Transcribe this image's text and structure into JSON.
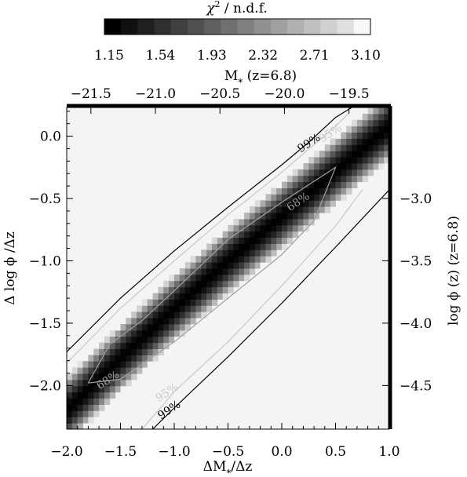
{
  "chart_data": {
    "type": "heatmap",
    "colorbar": {
      "label_symbol": "χ",
      "label_sup": "2",
      "label_rest": " / n.d.f.",
      "range": [
        1.15,
        3.1
      ],
      "ticks": [
        "1.15",
        "1.54",
        "1.93",
        "2.32",
        "2.71",
        "3.10"
      ],
      "colors": [
        "#000000",
        "#101010",
        "#202020",
        "#303030",
        "#404040",
        "#505050",
        "#606060",
        "#707070",
        "#808080",
        "#909090",
        "#a0a0a0",
        "#b0b0b0",
        "#c0c0c0",
        "#d0d0d0",
        "#e0e0e0",
        "#f8f8f8"
      ]
    },
    "x_axis": {
      "label_main": "ΔM",
      "label_sub": "*",
      "label_tail": "/Δz",
      "range": [
        -2.0,
        1.0
      ],
      "ticks": [
        -2.0,
        -1.5,
        -1.0,
        -0.5,
        0.0,
        0.5,
        1.0
      ],
      "tick_labels": [
        "−2.0",
        "−1.5",
        "−1.0",
        "−0.5",
        "0.0",
        "0.5",
        "1.0"
      ]
    },
    "y_axis": {
      "label": "Δ log ϕ /Δz",
      "range": [
        -2.35,
        0.23
      ],
      "ticks": [
        -2.0,
        -1.5,
        -1.0,
        -0.5,
        0.0
      ],
      "tick_labels": [
        "−2.0",
        "−1.5",
        "−1.0",
        "−0.5",
        "0.0"
      ]
    },
    "top_axis": {
      "label_main": "M",
      "label_sub": "*",
      "label_tail": " (z=6.8)",
      "ticks": [
        -21.5,
        -21.0,
        -20.5,
        -20.0,
        -19.5
      ],
      "tick_labels": [
        "−21.5",
        "−21.0",
        "−20.5",
        "−20.0",
        "−19.5"
      ],
      "positions_at_bottom": [
        -1.775,
        -1.175,
        -0.575,
        0.025,
        0.625
      ]
    },
    "right_axis": {
      "label": "log ϕ (z) (z=6.8)",
      "ticks": [
        -3.0,
        -3.5,
        -4.0,
        -4.5
      ],
      "tick_labels": [
        "−3.0",
        "−3.5",
        "−4.0",
        "−4.5"
      ],
      "positions_at_left": [
        -0.5,
        -1.0,
        -1.5,
        -2.0
      ]
    },
    "background_value": 3.1,
    "valley": {
      "center": [
        [
          -2.0,
          -2.2
        ],
        [
          -1.5,
          -1.78
        ],
        [
          -1.0,
          -1.38
        ],
        [
          -0.5,
          -1.0
        ],
        [
          0.0,
          -0.64
        ],
        [
          0.5,
          -0.28
        ],
        [
          1.0,
          0.08
        ]
      ],
      "min_value": 1.15,
      "half_width": 0.17
    },
    "contours": [
      {
        "label": "99%",
        "color": "#000000",
        "upper": [
          [
            -2.0,
            -1.73
          ],
          [
            -1.5,
            -1.3
          ],
          [
            -1.0,
            -0.92
          ],
          [
            -0.5,
            -0.57
          ],
          [
            0.0,
            -0.23
          ],
          [
            0.25,
            -0.05
          ],
          [
            0.5,
            0.15
          ],
          [
            0.65,
            0.23
          ]
        ],
        "lower": [
          [
            -1.2,
            -2.35
          ],
          [
            -1.0,
            -2.18
          ],
          [
            -0.5,
            -1.77
          ],
          [
            0.0,
            -1.34
          ],
          [
            0.5,
            -0.89
          ],
          [
            1.0,
            -0.43
          ]
        ],
        "labels": [
          {
            "text": "99%",
            "x": 0.27,
            "y": -0.08
          },
          {
            "text": "99%",
            "x": -1.03,
            "y": -2.22
          }
        ]
      },
      {
        "label": "95%",
        "color": "#c8c8c8",
        "upper": [
          [
            -2.0,
            -1.82
          ],
          [
            -1.5,
            -1.38
          ],
          [
            -1.0,
            -1.0
          ],
          [
            -0.5,
            -0.63
          ],
          [
            0.0,
            -0.29
          ],
          [
            0.5,
            0.08
          ],
          [
            0.62,
            0.18
          ]
        ],
        "lower": [
          [
            -1.3,
            -2.35
          ],
          [
            -1.0,
            -2.05
          ],
          [
            -0.5,
            -1.65
          ],
          [
            0.0,
            -1.2
          ],
          [
            0.5,
            -0.72
          ],
          [
            0.75,
            -0.43
          ]
        ],
        "labels": [
          {
            "text": "95%",
            "x": 0.47,
            "y": 0.0
          },
          {
            "text": "95%",
            "x": -1.05,
            "y": -2.08
          }
        ]
      },
      {
        "label": "68%",
        "color": "#a0a0a0",
        "polygon": [
          [
            -1.8,
            -1.98
          ],
          [
            -1.6,
            -1.67
          ],
          [
            -1.3,
            -1.48
          ],
          [
            -1.0,
            -1.24
          ],
          [
            -0.5,
            -0.83
          ],
          [
            0.0,
            -0.53
          ],
          [
            0.5,
            -0.25
          ],
          [
            0.3,
            -0.68
          ],
          [
            0.0,
            -0.95
          ],
          [
            -0.5,
            -1.3
          ],
          [
            -1.0,
            -1.65
          ],
          [
            -1.5,
            -1.95
          ],
          [
            -1.8,
            -1.98
          ]
        ],
        "labels": [
          {
            "text": "68%",
            "x": 0.17,
            "y": -0.55
          },
          {
            "text": "68%",
            "x": -1.6,
            "y": -1.98
          }
        ]
      }
    ]
  }
}
